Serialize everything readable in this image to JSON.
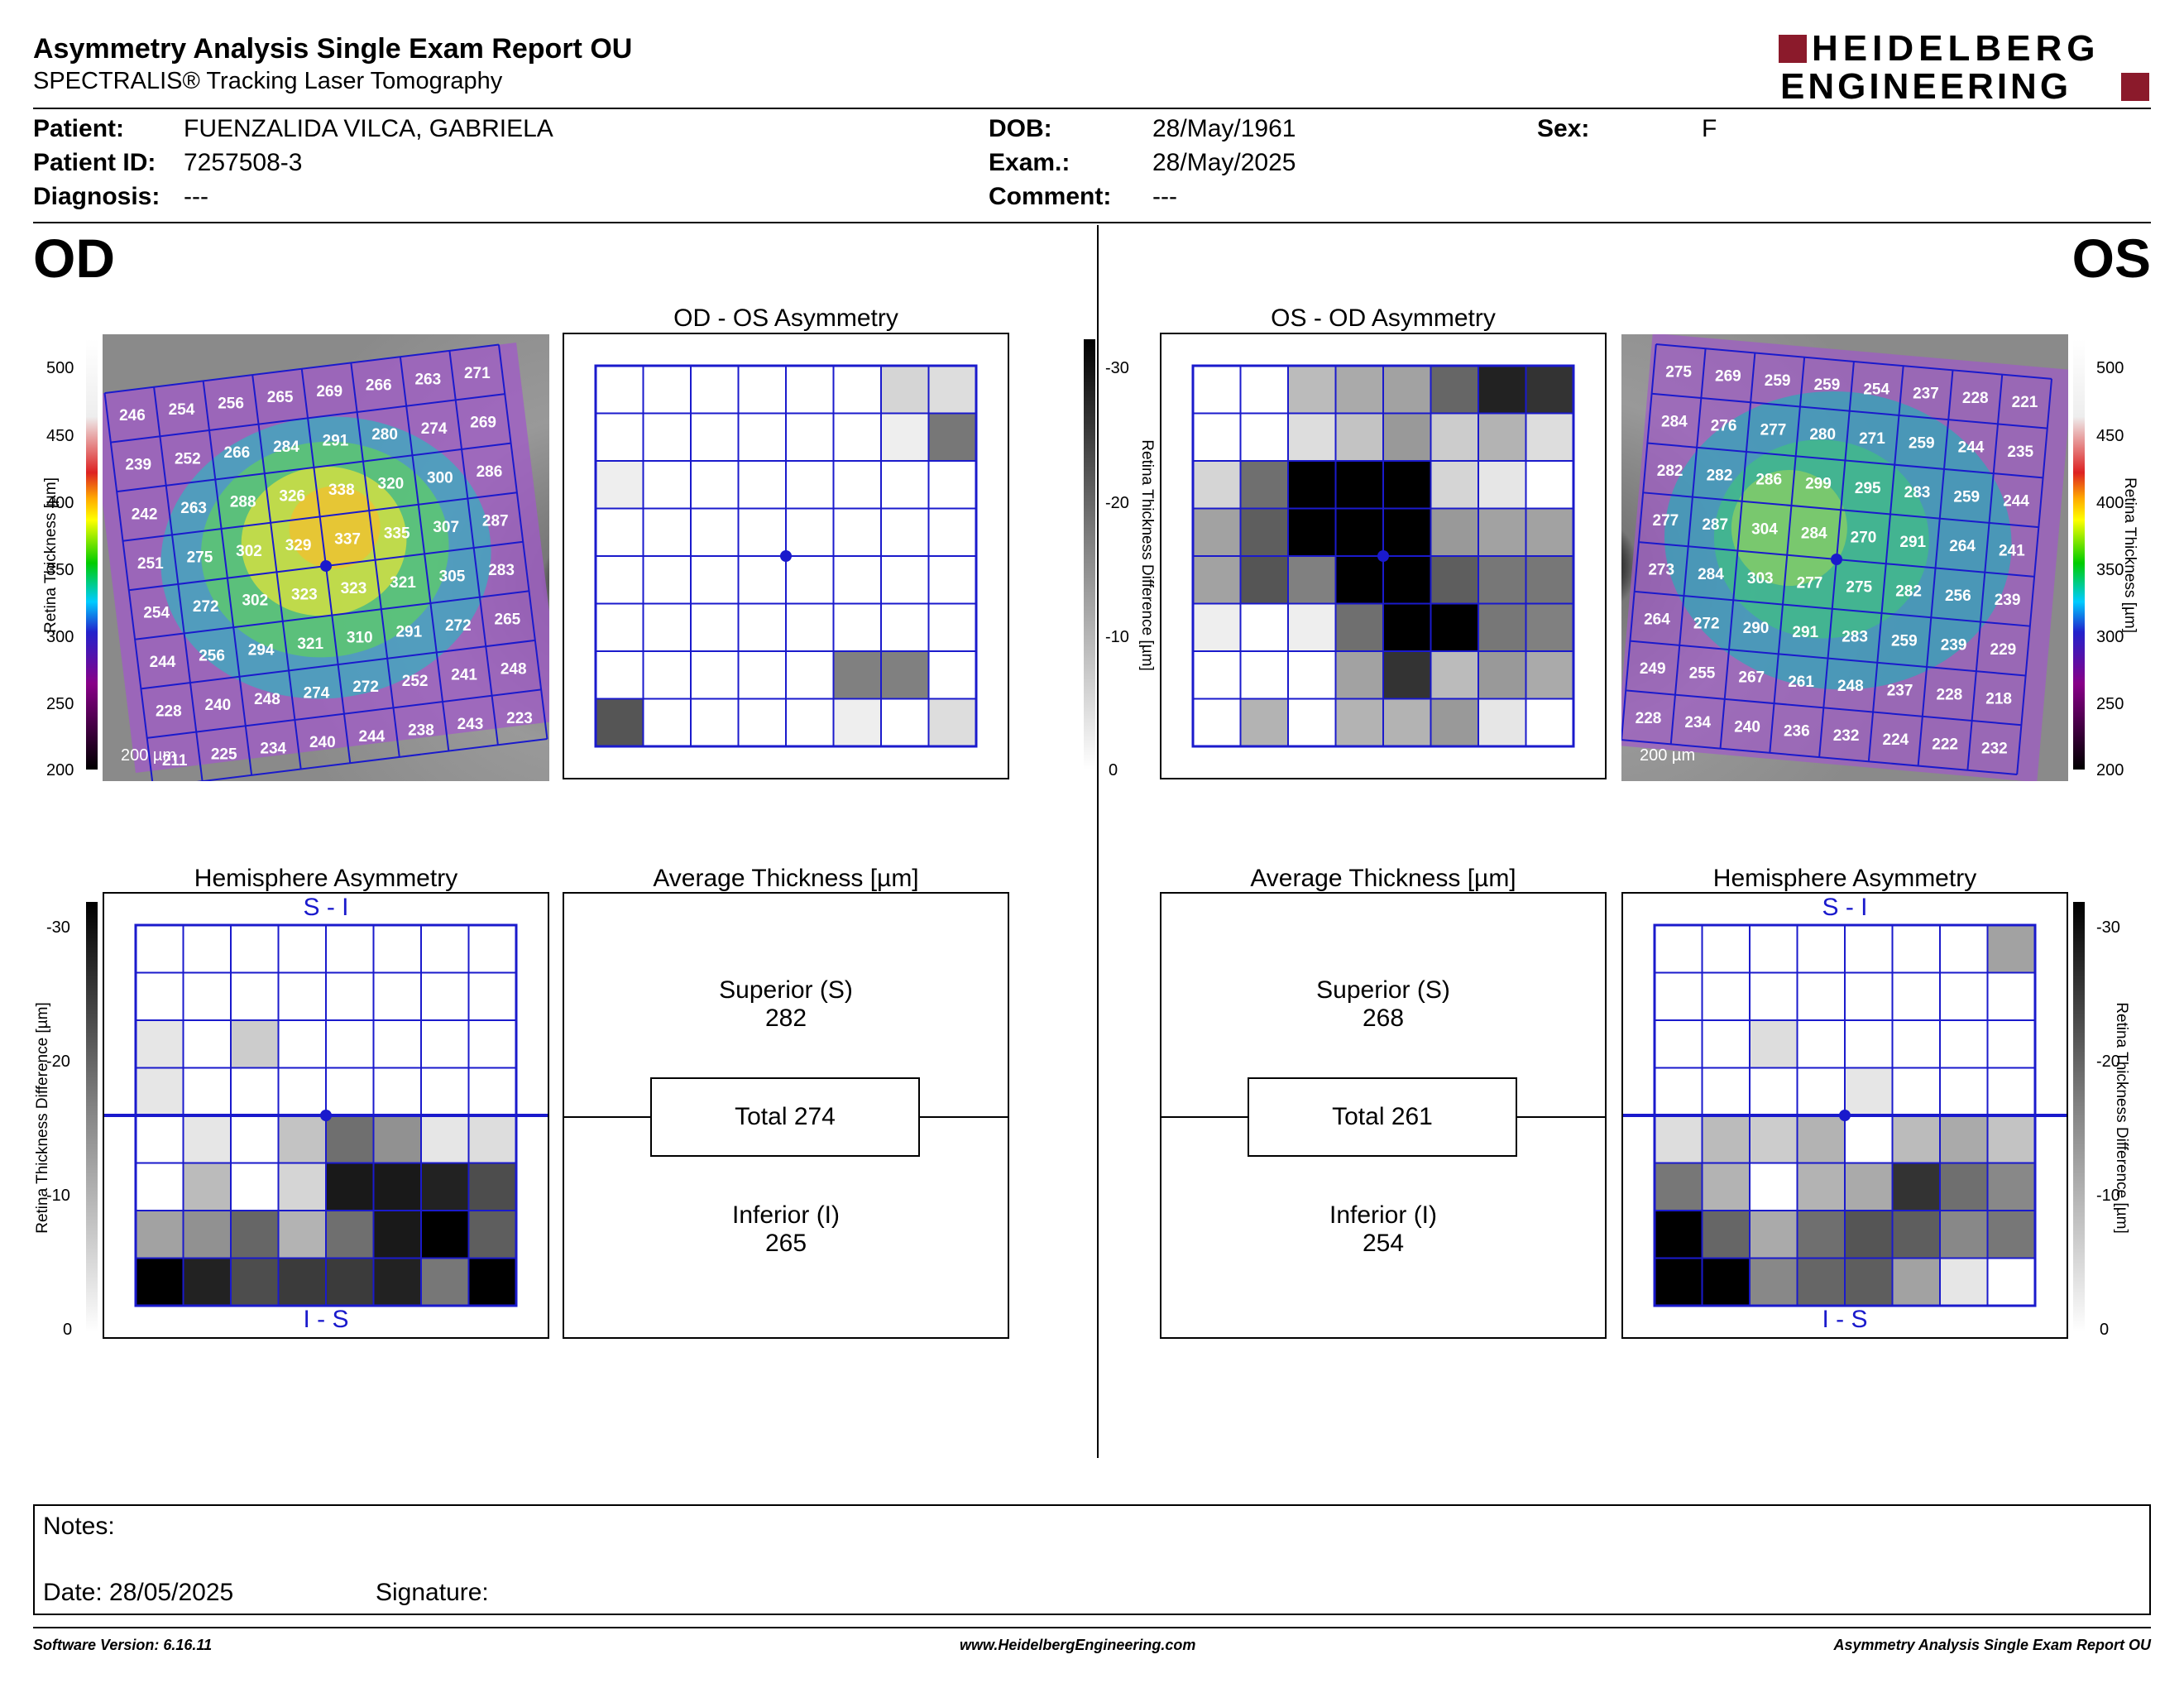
{
  "header": {
    "title": "Asymmetry Analysis Single Exam Report OU",
    "subtitle": "SPECTRALIS® Tracking Laser Tomography",
    "logo_line1": "HEIDELBERG",
    "logo_line2": "ENGINEERING",
    "brand_color": "#8b1a2b"
  },
  "patient": {
    "patient_label": "Patient:",
    "patient_value": "FUENZALIDA VILCA, GABRIELA",
    "id_label": "Patient ID:",
    "id_value": "7257508-3",
    "diagnosis_label": "Diagnosis:",
    "diagnosis_value": "---",
    "dob_label": "DOB:",
    "dob_value": "28/May/1961",
    "exam_label": "Exam.:",
    "exam_value": "28/May/2025",
    "comment_label": "Comment:",
    "comment_value": "---",
    "sex_label": "Sex:",
    "sex_value": "F"
  },
  "od": {
    "eye_label": "OD",
    "asym_title": "OD - OS Asymmetry",
    "hemi_title": "Hemisphere Asymmetry",
    "avg_title": "Average Thickness [µm]",
    "scale_bar": "200 µm",
    "superior_label": "Superior (S)",
    "superior_value": "282",
    "total_label": "Total 274",
    "inferior_label": "Inferior (I)",
    "inferior_value": "265",
    "hemi_top": "S - I",
    "hemi_bottom": "I - S",
    "thickness_grid": [
      [
        246,
        254,
        256,
        265,
        269,
        266,
        263,
        271
      ],
      [
        239,
        252,
        266,
        284,
        291,
        280,
        274,
        269
      ],
      [
        242,
        263,
        288,
        326,
        338,
        320,
        300,
        286
      ],
      [
        251,
        275,
        302,
        329,
        337,
        335,
        307,
        287
      ],
      [
        254,
        272,
        302,
        323,
        323,
        321,
        305,
        283
      ],
      [
        244,
        256,
        294,
        321,
        310,
        291,
        272,
        265
      ],
      [
        228,
        240,
        248,
        274,
        272,
        252,
        241,
        248
      ],
      [
        211,
        225,
        234,
        240,
        244,
        238,
        243,
        223
      ]
    ],
    "asym_grid": [
      [
        0,
        0,
        0,
        0,
        0,
        0,
        5,
        4
      ],
      [
        0,
        0,
        0,
        0,
        0,
        0,
        2,
        16
      ],
      [
        2,
        0,
        0,
        0,
        0,
        0,
        0,
        0
      ],
      [
        0,
        0,
        0,
        0,
        0,
        0,
        0,
        0
      ],
      [
        0,
        0,
        0,
        0,
        0,
        0,
        0,
        0
      ],
      [
        0,
        0,
        0,
        0,
        0,
        0,
        0,
        0
      ],
      [
        0,
        0,
        0,
        0,
        0,
        15,
        15,
        0
      ],
      [
        20,
        0,
        0,
        0,
        0,
        2,
        0,
        4
      ]
    ],
    "hemi_grid": [
      [
        0,
        0,
        0,
        0,
        0,
        0,
        0,
        0
      ],
      [
        0,
        0,
        0,
        0,
        0,
        0,
        0,
        0
      ],
      [
        3,
        0,
        6,
        0,
        0,
        0,
        0,
        0
      ],
      [
        3,
        0,
        0,
        0,
        0,
        0,
        0,
        0
      ],
      [
        0,
        3,
        0,
        7,
        17,
        13,
        3,
        4
      ],
      [
        0,
        8,
        0,
        5,
        27,
        27,
        26,
        21
      ],
      [
        11,
        13,
        18,
        9,
        17,
        27,
        30,
        19
      ],
      [
        30,
        26,
        21,
        23,
        23,
        26,
        16,
        30
      ]
    ]
  },
  "os": {
    "eye_label": "OS",
    "asym_title": "OS - OD Asymmetry",
    "hemi_title": "Hemisphere Asymmetry",
    "avg_title": "Average Thickness [µm]",
    "scale_bar": "200 µm",
    "superior_label": "Superior (S)",
    "superior_value": "268",
    "total_label": "Total 261",
    "inferior_label": "Inferior (I)",
    "inferior_value": "254",
    "hemi_top": "S - I",
    "hemi_bottom": "I - S",
    "thickness_grid": [
      [
        275,
        269,
        259,
        259,
        254,
        237,
        228,
        221
      ],
      [
        284,
        276,
        277,
        280,
        271,
        259,
        244,
        235
      ],
      [
        282,
        282,
        286,
        299,
        295,
        283,
        259,
        244
      ],
      [
        277,
        287,
        304,
        284,
        270,
        291,
        264,
        241
      ],
      [
        273,
        284,
        303,
        277,
        275,
        282,
        256,
        239
      ],
      [
        264,
        272,
        290,
        291,
        283,
        259,
        239,
        229
      ],
      [
        249,
        255,
        267,
        261,
        248,
        237,
        228,
        218
      ],
      [
        228,
        234,
        240,
        236,
        232,
        224,
        222,
        232
      ]
    ],
    "asym_grid": [
      [
        0,
        0,
        8,
        10,
        11,
        18,
        26,
        24
      ],
      [
        0,
        0,
        4,
        7,
        12,
        6,
        9,
        4
      ],
      [
        5,
        17,
        30,
        30,
        30,
        5,
        3,
        0
      ],
      [
        11,
        19,
        30,
        30,
        30,
        12,
        11,
        11
      ],
      [
        11,
        20,
        15,
        30,
        30,
        19,
        16,
        16
      ],
      [
        2,
        0,
        2,
        17,
        30,
        30,
        16,
        15
      ],
      [
        0,
        0,
        0,
        11,
        24,
        8,
        12,
        10
      ],
      [
        0,
        9,
        0,
        9,
        9,
        12,
        3,
        0
      ]
    ],
    "hemi_grid": [
      [
        0,
        0,
        0,
        0,
        0,
        0,
        0,
        11
      ],
      [
        0,
        0,
        0,
        0,
        0,
        0,
        0,
        0
      ],
      [
        0,
        0,
        4,
        0,
        0,
        0,
        0,
        0
      ],
      [
        0,
        0,
        0,
        0,
        3,
        0,
        0,
        0
      ],
      [
        4,
        8,
        6,
        9,
        0,
        8,
        10,
        7
      ],
      [
        16,
        9,
        0,
        9,
        10,
        24,
        17,
        14
      ],
      [
        30,
        18,
        10,
        17,
        20,
        19,
        14,
        16
      ],
      [
        30,
        30,
        14,
        18,
        19,
        11,
        3,
        0
      ]
    ]
  },
  "thickness_scale": {
    "ticks": [
      "500",
      "450",
      "400",
      "350",
      "300",
      "250",
      "200"
    ],
    "label": "Retina Thickness [µm]"
  },
  "diff_scale": {
    "ticks": [
      "-30",
      "-20",
      "-10",
      "0"
    ],
    "label": "Retina Thickness Difference [µm]"
  },
  "notes": {
    "notes_label": "Notes:",
    "date_label": "Date: 28/05/2025",
    "signature_label": "Signature:"
  },
  "footer": {
    "software": "Software Version: 6.16.11",
    "website": "www.HeidelbergEngineering.com",
    "report": "Asymmetry Analysis Single Exam Report OU"
  }
}
